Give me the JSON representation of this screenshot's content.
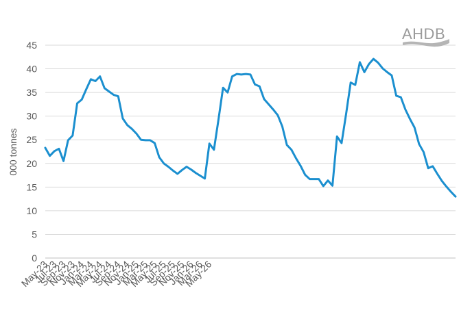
{
  "brand": {
    "logo_text": "AHDB"
  },
  "colors": {
    "series": "#1b8fcf",
    "grid": "#d9d9d9",
    "text": "#595959",
    "logo": "#9a9a9a"
  },
  "chart_data": {
    "type": "line",
    "title": "",
    "xlabel": "",
    "ylabel": "000 tonnes",
    "ylim": [
      0,
      45
    ],
    "yticks": [
      0,
      5,
      10,
      15,
      20,
      25,
      30,
      35,
      40,
      45
    ],
    "grid": "horizontal",
    "legend": "none",
    "x_tick_labels": [
      "May-23",
      "Jul-23",
      "Sep-23",
      "Nov-23",
      "Jan-24",
      "Mar-24",
      "May-24",
      "Jul-24",
      "Sep-24",
      "Nov-24",
      "Jan-25",
      "Mar-25",
      "May-25",
      "Jul-25",
      "Sep-25",
      "Nov-25",
      "Jan-26",
      "Mar-26",
      "May-26"
    ],
    "x_tick_every": 2,
    "series": [
      {
        "values": [
          23.3,
          21.6,
          22.6,
          23.1,
          20.5,
          24.9,
          25.9,
          32.7,
          33.5,
          35.7,
          37.8,
          37.4,
          38.4,
          35.9,
          35.2,
          34.5,
          34.2,
          29.5,
          28.1,
          27.3,
          26.3,
          25.0,
          24.9,
          24.9,
          24.3,
          21.3,
          20.0,
          19.3,
          18.5,
          17.8,
          18.6,
          19.3,
          18.7,
          18.0,
          17.4,
          16.8,
          24.2,
          22.9,
          29.3,
          36.0,
          35.0,
          38.4,
          38.9,
          38.8,
          38.9,
          38.8,
          36.7,
          36.3,
          33.6,
          32.5,
          31.4,
          30.2,
          27.8,
          23.9,
          22.9,
          21.1,
          19.5,
          17.6,
          16.7,
          16.7,
          16.7,
          15.2,
          16.4,
          15.3,
          25.7,
          24.3,
          30.5,
          37.1,
          36.6,
          41.4,
          39.3,
          41.0,
          42.1,
          41.3,
          40.1,
          39.3,
          38.6,
          34.3,
          34.0,
          31.4,
          29.4,
          27.6,
          24.1,
          22.4,
          19.0,
          19.4,
          17.8,
          16.3,
          15.1,
          14.0,
          13.0
        ]
      }
    ]
  }
}
